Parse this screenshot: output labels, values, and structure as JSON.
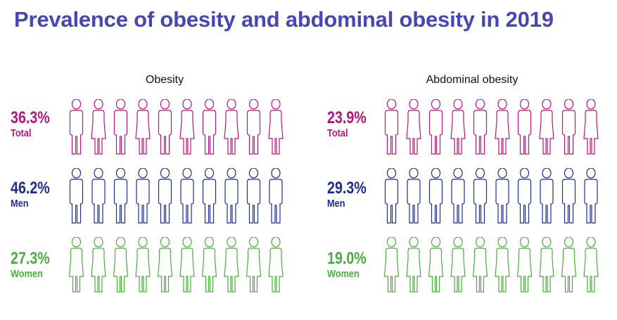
{
  "title": "Prevalence of obesity and abdominal obesity in 2019",
  "colors": {
    "title": "#4646b4",
    "total": "#b4157f",
    "men": "#1b2f8f",
    "women": "#4aad3d"
  },
  "panels": [
    {
      "title": "Obesity",
      "rows": [
        {
          "label_pct": "36.3%",
          "label_group": "Total",
          "color_key": "total",
          "icons": "mixed"
        },
        {
          "label_pct": "46.2%",
          "label_group": "Men",
          "color_key": "men",
          "icons": "man"
        },
        {
          "label_pct": "27.3%",
          "label_group": "Women",
          "color_key": "women",
          "icons": "woman"
        }
      ]
    },
    {
      "title": "Abdominal obesity",
      "rows": [
        {
          "label_pct": "23.9%",
          "label_group": "Total",
          "color_key": "total",
          "icons": "mixed"
        },
        {
          "label_pct": "29.3%",
          "label_group": "Men",
          "color_key": "men",
          "icons": "man"
        },
        {
          "label_pct": "19.0%",
          "label_group": "Women",
          "color_key": "women",
          "icons": "woman"
        }
      ]
    }
  ],
  "chart_data": [
    {
      "type": "bar",
      "title": "Obesity",
      "categories": [
        "Total",
        "Men",
        "Women"
      ],
      "values": [
        36.3,
        46.2,
        27.3
      ],
      "unit": "%",
      "icons_per_row": 10
    },
    {
      "type": "bar",
      "title": "Abdominal obesity",
      "categories": [
        "Total",
        "Men",
        "Women"
      ],
      "values": [
        23.9,
        29.3,
        19.0
      ],
      "unit": "%",
      "icons_per_row": 10
    }
  ]
}
